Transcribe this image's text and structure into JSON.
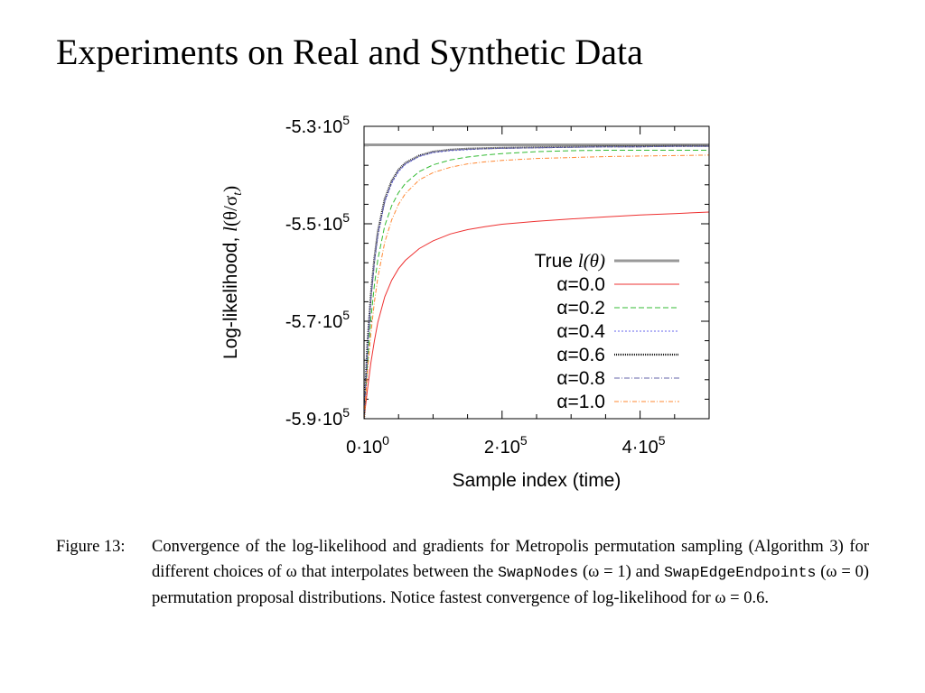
{
  "slide": {
    "title": "Experiments on Real and Synthetic Data"
  },
  "chart_data": {
    "type": "line",
    "title": "",
    "xlabel": "Sample index (time)",
    "ylabel": "Log-likelihood, l(θ/σt)",
    "ylabel_parts": {
      "prefix": "Log-likelihood, ",
      "l": "l",
      "arg": "(θ/σ",
      "sub": "t",
      "close": ")"
    },
    "xlim": [
      0,
      500000
    ],
    "ylim": [
      -590000,
      -530000
    ],
    "x_ticks": [
      {
        "value": 0,
        "base": "0·10",
        "exp": "0"
      },
      {
        "value": 200000,
        "base": "2·10",
        "exp": "5"
      },
      {
        "value": 400000,
        "base": "4·10",
        "exp": "5"
      }
    ],
    "y_ticks": [
      {
        "value": -530000,
        "base": "-5.3·10",
        "exp": "5"
      },
      {
        "value": -550000,
        "base": "-5.5·10",
        "exp": "5"
      },
      {
        "value": -570000,
        "base": "-5.7·10",
        "exp": "5"
      },
      {
        "value": -590000,
        "base": "-5.9·10",
        "exp": "5"
      }
    ],
    "grid": false,
    "legend_position": "bottom-right",
    "x": [
      0,
      5000,
      10000,
      15000,
      20000,
      30000,
      40000,
      50000,
      60000,
      80000,
      100000,
      125000,
      150000,
      175000,
      200000,
      250000,
      300000,
      350000,
      400000,
      450000,
      500000
    ],
    "series": [
      {
        "name": "True l(θ)",
        "label_parts": {
          "text": "True ",
          "italic": "l",
          "rest": "(θ)"
        },
        "color": "#999999",
        "dash": "solid",
        "width": 3,
        "values": [
          -533800,
          -533800,
          -533800,
          -533800,
          -533800,
          -533800,
          -533800,
          -533800,
          -533800,
          -533800,
          -533800,
          -533800,
          -533800,
          -533800,
          -533800,
          -533800,
          -533800,
          -533800,
          -533800,
          -533800,
          -533800
        ]
      },
      {
        "name": "α=0.0",
        "label_parts": {
          "text": "α=0.0"
        },
        "color": "#ee3030",
        "dash": "solid",
        "width": 1,
        "values": [
          -590000,
          -584000,
          -578500,
          -574000,
          -570200,
          -565000,
          -561600,
          -559200,
          -557500,
          -555100,
          -553500,
          -552100,
          -551200,
          -550600,
          -550100,
          -549500,
          -549000,
          -548600,
          -548200,
          -547900,
          -547600
        ]
      },
      {
        "name": "α=0.2",
        "label_parts": {
          "text": "α=0.2"
        },
        "color": "#33bb33",
        "dash": "6,3",
        "width": 1,
        "values": [
          -590000,
          -578500,
          -569500,
          -562500,
          -557300,
          -550400,
          -546300,
          -543600,
          -541700,
          -539300,
          -537900,
          -536900,
          -536300,
          -535900,
          -535600,
          -535200,
          -535000,
          -534900,
          -534900,
          -534900,
          -534900
        ]
      },
      {
        "name": "α=0.4",
        "label_parts": {
          "text": "α=0.4"
        },
        "color": "#6666ee",
        "dash": "2,2",
        "width": 1,
        "values": [
          -590000,
          -575500,
          -565500,
          -558000,
          -552500,
          -545600,
          -541700,
          -539300,
          -537800,
          -536200,
          -535400,
          -535000,
          -534800,
          -534600,
          -534500,
          -534400,
          -534300,
          -534200,
          -534200,
          -534100,
          -534100
        ]
      },
      {
        "name": "α=0.6",
        "label_parts": {
          "text": "α=0.6"
        },
        "color": "#222222",
        "dash": "1,1",
        "width": 2.2,
        "values": [
          -590000,
          -574500,
          -564500,
          -557000,
          -551600,
          -544900,
          -541200,
          -538900,
          -537500,
          -536000,
          -535200,
          -534800,
          -534600,
          -534500,
          -534400,
          -534300,
          -534200,
          -534100,
          -534100,
          -534000,
          -534000
        ]
      },
      {
        "name": "α=0.8",
        "label_parts": {
          "text": "α=0.8"
        },
        "color": "#6666aa",
        "dash": "6,2,1,2",
        "width": 1,
        "values": [
          -590000,
          -575000,
          -565000,
          -557600,
          -552100,
          -545300,
          -541500,
          -539100,
          -537700,
          -536100,
          -535300,
          -534900,
          -534700,
          -534600,
          -534500,
          -534400,
          -534300,
          -534200,
          -534200,
          -534100,
          -534100
        ]
      },
      {
        "name": "α=1.0",
        "label_parts": {
          "text": "α=1.0"
        },
        "color": "#ff8833",
        "dash": "5,2,1,2",
        "width": 1,
        "values": [
          -590000,
          -580500,
          -572500,
          -566000,
          -561000,
          -553800,
          -549200,
          -546000,
          -543800,
          -541000,
          -539500,
          -538400,
          -537700,
          -537300,
          -537000,
          -536600,
          -536400,
          -536200,
          -536100,
          -536000,
          -535900
        ]
      }
    ]
  },
  "caption": {
    "label": "Figure 13:",
    "seg1": "Convergence of the log-likelihood and gradients for Metropolis permutation sampling (Algorithm 3) for different choices of ω that interpolates between the ",
    "code1": "SwapNodes",
    "seg2": " (ω = 1) and ",
    "code2": "SwapEdgeEndpoints",
    "seg3": " (ω = 0) permutation proposal distributions. Notice fastest convergence of log-likelihood for ω = 0.6."
  }
}
